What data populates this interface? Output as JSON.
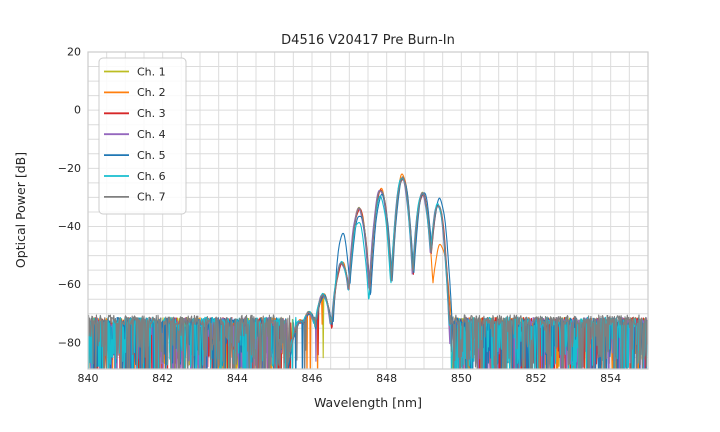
{
  "chart_data": {
    "type": "line",
    "title": "D4516 V20417 Pre Burn-In",
    "xlabel": "Wavelength [nm]",
    "ylabel": "Optical Power [dB]",
    "xlim": [
      840,
      855
    ],
    "ylim": [
      -89,
      20
    ],
    "x_ticks": [
      {
        "v": 840,
        "l": "840"
      },
      {
        "v": 842,
        "l": "842"
      },
      {
        "v": 844,
        "l": "844"
      },
      {
        "v": 846,
        "l": "846"
      },
      {
        "v": 848,
        "l": "848"
      },
      {
        "v": 850,
        "l": "850"
      },
      {
        "v": 852,
        "l": "852"
      },
      {
        "v": 854,
        "l": "854"
      }
    ],
    "y_ticks": [
      {
        "v": 20,
        "l": "20"
      },
      {
        "v": 0,
        "l": "0"
      },
      {
        "v": -20,
        "l": "−20"
      },
      {
        "v": -40,
        "l": "−40"
      },
      {
        "v": -60,
        "l": "−60"
      },
      {
        "v": -80,
        "l": "−80"
      }
    ],
    "grid": {
      "x_step_nm": 0.5,
      "y_step_db": 5,
      "on": true
    },
    "legend_position": "upper left",
    "peak": {
      "wavelength_nm": 848.4,
      "power_db": -23
    },
    "signal_range_nm": [
      845.7,
      849.65
    ],
    "noise_floor": {
      "base_db": -74.8,
      "jitter_db": 3.5,
      "spike_prob": 0.35,
      "spike_depth_db": 20,
      "quiet_zone_nm": [
        845.32,
        845.95
      ],
      "quiet_density": 0.1
    },
    "lobe_halfwidth_nm": 0.25,
    "base_lobes": [
      [
        845.7,
        -72.5,
        8
      ],
      [
        845.92,
        -69.5,
        12
      ],
      [
        846.3,
        -63.5,
        15
      ],
      [
        846.8,
        -52.5,
        18
      ],
      [
        847.26,
        -33.8,
        22
      ],
      [
        847.84,
        -27.3,
        24
      ],
      [
        848.42,
        -23.2,
        26
      ],
      [
        848.96,
        -28.6,
        26
      ],
      [
        849.38,
        -32.5,
        28
      ]
    ],
    "series": [
      {
        "name": "Ch. 1",
        "color": "#bcbd22",
        "dx": 0.0,
        "dy": 0.0,
        "noise_bias": 0.0,
        "lobe_overrides": {}
      },
      {
        "name": "Ch. 2",
        "color": "#ff7f0e",
        "dx": 0.005,
        "dy": 0.2,
        "noise_bias": 0.0,
        "lobe_overrides": {
          "6": [
            848.42,
            -22.3,
            26
          ],
          "7": [
            848.96,
            -29.2,
            26
          ],
          "8": [
            849.44,
            -46.5,
            20
          ]
        }
      },
      {
        "name": "Ch. 3",
        "color": "#d62728",
        "dx": 0.012,
        "dy": -0.3,
        "noise_bias": 0.0,
        "lobe_overrides": {}
      },
      {
        "name": "Ch. 4",
        "color": "#9467bd",
        "dx": -0.015,
        "dy": -0.2,
        "noise_bias": 0.0,
        "lobe_overrides": {}
      },
      {
        "name": "Ch. 5",
        "color": "#1f77b4",
        "dx": 0.02,
        "dy": -0.3,
        "noise_bias": 0.0,
        "lobe_overrides": {
          "3": [
            846.8,
            -42.2,
            30
          ],
          "4": [
            847.26,
            -35.8,
            22
          ],
          "5": [
            847.85,
            -29.0,
            24
          ],
          "7": [
            848.97,
            -27.8,
            26
          ],
          "8": [
            849.4,
            -30.3,
            24
          ]
        }
      },
      {
        "name": "Ch. 6",
        "color": "#17becf",
        "dx": -0.01,
        "dy": 0.1,
        "noise_bias": 0.15,
        "lobe_overrides": {
          "4": [
            847.25,
            -38.5,
            22
          ],
          "5": [
            847.84,
            -30.0,
            24
          ]
        }
      },
      {
        "name": "Ch. 7",
        "color": "#7f7f7f",
        "dx": 0.004,
        "dy": -0.1,
        "noise_bias": 0.9,
        "lobe_overrides": {}
      }
    ]
  }
}
